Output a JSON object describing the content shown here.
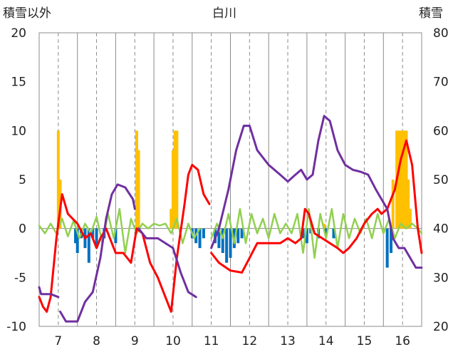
{
  "chart_data": {
    "type": "line",
    "title": "白川",
    "ylabel_left": "積雪以外",
    "ylabel_right": "積雪",
    "x_ticks": [
      "7",
      "8",
      "9",
      "10",
      "11",
      "12",
      "13",
      "14",
      "15",
      "16"
    ],
    "y_left_ticks": [
      "20",
      "15",
      "10",
      "5",
      "0",
      "-5",
      "-10"
    ],
    "y_right_ticks": [
      "80",
      "70",
      "60",
      "50",
      "40",
      "30",
      "20"
    ],
    "x_range": [
      6.5,
      16.5
    ],
    "y_left_range": [
      -10,
      20
    ],
    "y_right_range": [
      20,
      80
    ],
    "grid": "dashed-vertical",
    "colors": {
      "red_line": "#ff0000",
      "purple_line": "#7030a0",
      "green_line": "#92d050",
      "orange_bar": "#ffc000",
      "blue_bar": "#0070c0"
    },
    "series": [
      {
        "color_key": "purple_line",
        "axis": "left",
        "segments": [
          [
            [
              6.5,
              -6.0
            ],
            [
              6.55,
              -6.7
            ],
            [
              6.8,
              -6.7
            ],
            [
              7.0,
              -7.0
            ]
          ],
          [
            [
              7.05,
              -8.5
            ],
            [
              7.2,
              -9.5
            ],
            [
              7.5,
              -9.5
            ],
            [
              7.7,
              -7.5
            ],
            [
              7.9,
              -6.5
            ],
            [
              8.1,
              -3.0
            ],
            [
              8.25,
              1.0
            ],
            [
              8.4,
              3.5
            ],
            [
              8.55,
              4.5
            ],
            [
              8.75,
              4.2
            ],
            [
              8.95,
              3.0
            ],
            [
              9.0,
              2.0
            ]
          ],
          [
            [
              9.1,
              0.0
            ],
            [
              9.3,
              -1.0
            ],
            [
              9.6,
              -1.0
            ],
            [
              9.8,
              -1.5
            ],
            [
              10.0,
              -2.0
            ],
            [
              10.2,
              -4.5
            ],
            [
              10.4,
              -6.5
            ],
            [
              10.6,
              -7.0
            ]
          ],
          [
            [
              11.0,
              -2.0
            ],
            [
              11.2,
              0.0
            ],
            [
              11.45,
              4.0
            ],
            [
              11.65,
              8.0
            ],
            [
              11.85,
              10.5
            ],
            [
              12.0,
              10.5
            ],
            [
              12.2,
              8.0
            ],
            [
              12.5,
              6.5
            ],
            [
              12.8,
              5.5
            ],
            [
              13.0,
              4.8
            ],
            [
              13.2,
              5.5
            ],
            [
              13.35,
              6.0
            ],
            [
              13.5,
              5.0
            ],
            [
              13.65,
              5.5
            ],
            [
              13.8,
              9.0
            ],
            [
              13.95,
              11.5
            ],
            [
              14.1,
              11.0
            ],
            [
              14.3,
              8.0
            ],
            [
              14.5,
              6.5
            ],
            [
              14.7,
              6.0
            ],
            [
              14.9,
              5.8
            ],
            [
              15.1,
              5.5
            ],
            [
              15.3,
              4.0
            ],
            [
              15.45,
              3.0
            ],
            [
              15.6,
              2.0
            ],
            [
              15.75,
              -1.0
            ],
            [
              15.9,
              -2.0
            ],
            [
              16.05,
              -2.0
            ],
            [
              16.2,
              -3.0
            ],
            [
              16.35,
              -4.0
            ],
            [
              16.5,
              -4.0
            ]
          ]
        ]
      },
      {
        "color_key": "red_line",
        "axis": "left",
        "segments": [
          [
            [
              6.5,
              -7.0
            ],
            [
              6.6,
              -8.0
            ],
            [
              6.7,
              -8.5
            ],
            [
              6.8,
              -7.0
            ],
            [
              6.95,
              -1.0
            ],
            [
              7.1,
              3.5
            ],
            [
              7.25,
              1.5
            ],
            [
              7.5,
              0.5
            ],
            [
              7.7,
              -1.0
            ],
            [
              7.85,
              -0.5
            ],
            [
              8.0,
              -2.0
            ],
            [
              8.1,
              -1.0
            ],
            [
              8.25,
              0.0
            ],
            [
              8.5,
              -2.5
            ],
            [
              8.7,
              -2.5
            ],
            [
              8.9,
              -3.5
            ],
            [
              9.05,
              0.0
            ],
            [
              9.2,
              -0.5
            ],
            [
              9.4,
              -3.5
            ],
            [
              9.6,
              -5.0
            ],
            [
              9.8,
              -7.0
            ],
            [
              9.95,
              -8.5
            ],
            [
              10.1,
              -3.0
            ],
            [
              10.3,
              2.5
            ],
            [
              10.4,
              5.5
            ],
            [
              10.5,
              6.5
            ],
            [
              10.65,
              6.0
            ],
            [
              10.8,
              3.5
            ],
            [
              10.95,
              2.5
            ]
          ],
          [
            [
              11.0,
              -2.5
            ],
            [
              11.2,
              -3.5
            ],
            [
              11.5,
              -4.3
            ],
            [
              11.8,
              -4.5
            ],
            [
              12.0,
              -3.0
            ],
            [
              12.2,
              -1.5
            ],
            [
              12.5,
              -1.5
            ],
            [
              12.8,
              -1.5
            ],
            [
              13.0,
              -1.0
            ],
            [
              13.2,
              -1.5
            ],
            [
              13.35,
              -1.0
            ],
            [
              13.45,
              2.0
            ],
            [
              13.55,
              1.5
            ],
            [
              13.7,
              -0.5
            ],
            [
              13.9,
              -1.0
            ],
            [
              14.1,
              -1.5
            ],
            [
              14.3,
              -2.0
            ],
            [
              14.45,
              -2.5
            ],
            [
              14.6,
              -2.0
            ],
            [
              14.8,
              -1.0
            ],
            [
              15.0,
              0.5
            ],
            [
              15.2,
              1.5
            ],
            [
              15.35,
              2.0
            ],
            [
              15.45,
              1.5
            ],
            [
              15.6,
              2.0
            ],
            [
              15.8,
              4.0
            ],
            [
              15.95,
              7.0
            ],
            [
              16.1,
              9.0
            ],
            [
              16.25,
              6.5
            ],
            [
              16.4,
              0.0
            ],
            [
              16.5,
              -2.5
            ]
          ]
        ]
      },
      {
        "color_key": "green_line",
        "axis": "left",
        "segments": [
          [
            [
              6.5,
              0.3
            ],
            [
              6.65,
              -0.5
            ],
            [
              6.8,
              0.5
            ],
            [
              6.95,
              -0.5
            ],
            [
              7.1,
              1.0
            ],
            [
              7.25,
              -0.8
            ],
            [
              7.4,
              0.8
            ],
            [
              7.55,
              -1.0
            ],
            [
              7.7,
              0.5
            ],
            [
              7.85,
              -0.5
            ],
            [
              8.0,
              1.2
            ],
            [
              8.15,
              -1.5
            ],
            [
              8.3,
              1.5
            ],
            [
              8.45,
              -1.0
            ],
            [
              8.6,
              2.0
            ],
            [
              8.75,
              -2.5
            ],
            [
              8.9,
              1.0
            ],
            [
              9.05,
              -0.5
            ],
            [
              9.2,
              0.5
            ],
            [
              9.35,
              0.0
            ],
            [
              9.5,
              0.5
            ],
            [
              9.65,
              0.3
            ],
            [
              9.8,
              0.5
            ],
            [
              9.95,
              -0.5
            ],
            [
              10.1,
              1.0
            ],
            [
              10.25,
              -1.5
            ],
            [
              10.4,
              0.5
            ],
            [
              10.55,
              -1.0
            ],
            [
              10.7,
              0.0
            ]
          ],
          [
            [
              11.0,
              -1.0
            ],
            [
              11.15,
              0.5
            ],
            [
              11.3,
              -1.0
            ],
            [
              11.45,
              1.5
            ],
            [
              11.6,
              -1.5
            ],
            [
              11.75,
              2.0
            ],
            [
              11.9,
              -1.5
            ],
            [
              12.05,
              1.5
            ],
            [
              12.2,
              -0.5
            ],
            [
              12.35,
              1.0
            ],
            [
              12.5,
              -1.0
            ],
            [
              12.65,
              1.5
            ],
            [
              12.8,
              -0.5
            ],
            [
              12.95,
              0.5
            ],
            [
              13.1,
              -0.5
            ],
            [
              13.25,
              1.5
            ],
            [
              13.4,
              -2.5
            ],
            [
              13.55,
              2.0
            ],
            [
              13.7,
              -3.0
            ],
            [
              13.85,
              1.5
            ],
            [
              14.0,
              -1.0
            ],
            [
              14.15,
              2.0
            ],
            [
              14.3,
              -2.0
            ],
            [
              14.45,
              1.5
            ],
            [
              14.6,
              -1.0
            ],
            [
              14.75,
              1.0
            ],
            [
              14.9,
              -0.5
            ],
            [
              15.05,
              1.0
            ],
            [
              15.2,
              -1.0
            ],
            [
              15.35,
              1.5
            ],
            [
              15.5,
              -0.5
            ],
            [
              15.65,
              1.0
            ],
            [
              15.8,
              -1.0
            ],
            [
              15.95,
              0.5
            ],
            [
              16.1,
              0.0
            ],
            [
              16.25,
              0.5
            ],
            [
              16.4,
              0.0
            ],
            [
              16.5,
              -0.5
            ]
          ]
        ]
      }
    ],
    "bars": [
      {
        "color_key": "orange_bar",
        "axis": "left",
        "points": [
          [
            7.0,
            10.0
          ],
          [
            7.05,
            5.0
          ],
          [
            9.05,
            10.0
          ],
          [
            9.1,
            8.0
          ],
          [
            9.95,
            2.0
          ],
          [
            10.0,
            8.0
          ],
          [
            10.05,
            10.0
          ],
          [
            10.1,
            10.0
          ],
          [
            13.95,
            0.5
          ],
          [
            15.75,
            5.0
          ],
          [
            15.85,
            10.0
          ],
          [
            15.9,
            10.0
          ],
          [
            15.95,
            10.0
          ],
          [
            16.0,
            10.0
          ],
          [
            16.05,
            10.0
          ],
          [
            16.1,
            10.0
          ],
          [
            16.15,
            5.0
          ],
          [
            16.2,
            2.0
          ]
        ]
      },
      {
        "color_key": "blue_bar",
        "axis": "left",
        "points": [
          [
            7.45,
            -1.5
          ],
          [
            7.5,
            -2.5
          ],
          [
            7.6,
            -1.0
          ],
          [
            7.7,
            -2.0
          ],
          [
            7.8,
            -3.5
          ],
          [
            7.9,
            -1.0
          ],
          [
            8.0,
            -2.0
          ],
          [
            8.2,
            -1.0
          ],
          [
            8.5,
            -1.5
          ],
          [
            10.5,
            -1.0
          ],
          [
            10.6,
            -1.5
          ],
          [
            10.7,
            -2.0
          ],
          [
            10.8,
            -1.0
          ],
          [
            11.1,
            -1.5
          ],
          [
            11.2,
            -2.0
          ],
          [
            11.3,
            -2.5
          ],
          [
            11.4,
            -3.5
          ],
          [
            11.5,
            -3.0
          ],
          [
            11.6,
            -2.0
          ],
          [
            11.7,
            -1.5
          ],
          [
            11.8,
            -1.0
          ],
          [
            13.4,
            -1.0
          ],
          [
            13.5,
            -1.5
          ],
          [
            13.6,
            -0.5
          ],
          [
            13.8,
            -1.0
          ],
          [
            14.0,
            -0.5
          ],
          [
            14.2,
            -1.0
          ],
          [
            15.6,
            -4.0
          ],
          [
            15.7,
            -2.5
          ]
        ]
      }
    ]
  }
}
